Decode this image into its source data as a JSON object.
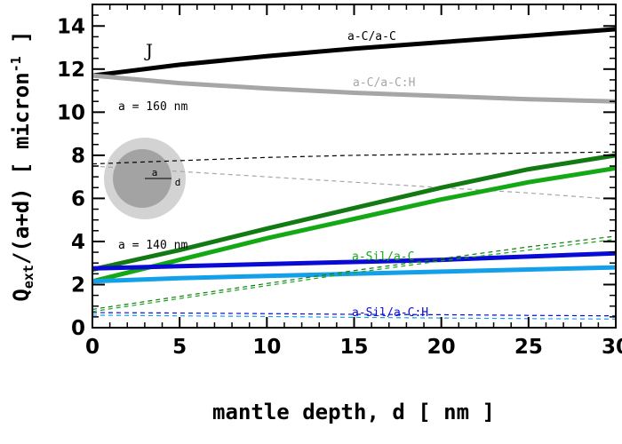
{
  "chart_data": {
    "type": "line",
    "panel_label": "J",
    "xlabel": "mantle depth, d [ nm ]",
    "ylabel_main": "Q",
    "ylabel_sub": "ext",
    "ylabel_rest": "/(a+d) [ micron",
    "ylabel_sup": "-1",
    "ylabel_close": " ]",
    "xlim": [
      0,
      30
    ],
    "ylim": [
      0,
      15
    ],
    "xticks": [
      "0",
      "5",
      "10",
      "15",
      "20",
      "25",
      "30"
    ],
    "yticks": [
      "0",
      "2",
      "4",
      "6",
      "8",
      "10",
      "12",
      "14"
    ],
    "annotations": {
      "a160": "a = 160 nm",
      "a140": "a = 140 nm",
      "aC_aC": "a-C/a-C",
      "aC_aCH": "a-C/a-C:H",
      "aSil_aC": "a-Sil/a-C",
      "aSil_aCH": "a-Sil/a-C:H",
      "inset_a": "a",
      "inset_d": "d"
    },
    "colors": {
      "black": "#000000",
      "gray": "#a6a6a6",
      "darkgreen": "#137a13",
      "green": "#14a814",
      "blue": "#0a0ad6",
      "lightblue": "#14a0e8"
    },
    "series": [
      {
        "color": "black",
        "style": "solid",
        "x": [
          0,
          5,
          10,
          15,
          20,
          25,
          30
        ],
        "y": [
          11.7,
          12.2,
          12.6,
          12.95,
          13.25,
          13.55,
          13.85
        ]
      },
      {
        "color": "gray",
        "style": "solid",
        "x": [
          0,
          5,
          10,
          15,
          20,
          25,
          30
        ],
        "y": [
          11.7,
          11.35,
          11.1,
          10.9,
          10.75,
          10.6,
          10.5
        ]
      },
      {
        "color": "black",
        "style": "dashed",
        "x": [
          0,
          5,
          10,
          15,
          20,
          25,
          30
        ],
        "y": [
          7.6,
          7.75,
          7.9,
          8.0,
          8.05,
          8.1,
          8.15
        ]
      },
      {
        "color": "gray",
        "style": "dashed",
        "x": [
          0,
          5,
          10,
          15,
          20,
          25,
          30
        ],
        "y": [
          7.5,
          7.25,
          7.0,
          6.75,
          6.5,
          6.25,
          5.95
        ]
      },
      {
        "color": "darkgreen",
        "style": "solid",
        "x": [
          0,
          5,
          10,
          15,
          20,
          25,
          30
        ],
        "y": [
          2.7,
          3.6,
          4.6,
          5.55,
          6.5,
          7.35,
          8.0
        ]
      },
      {
        "color": "green",
        "style": "solid",
        "x": [
          0,
          5,
          10,
          15,
          20,
          25,
          30
        ],
        "y": [
          2.15,
          3.15,
          4.15,
          5.05,
          5.95,
          6.75,
          7.4
        ]
      },
      {
        "color": "blue",
        "style": "solid",
        "x": [
          0,
          5,
          10,
          15,
          20,
          25,
          30
        ],
        "y": [
          2.75,
          2.85,
          2.95,
          3.05,
          3.15,
          3.3,
          3.45
        ]
      },
      {
        "color": "lightblue",
        "style": "solid",
        "x": [
          0,
          5,
          10,
          15,
          20,
          25,
          30
        ],
        "y": [
          2.15,
          2.3,
          2.4,
          2.5,
          2.6,
          2.7,
          2.8
        ]
      },
      {
        "color": "darkgreen",
        "style": "dashed",
        "x": [
          0,
          5,
          10,
          15,
          20,
          25,
          30
        ],
        "y": [
          0.85,
          1.45,
          2.05,
          2.65,
          3.2,
          3.75,
          4.25
        ]
      },
      {
        "color": "green",
        "style": "dashed",
        "x": [
          0,
          5,
          10,
          15,
          20,
          25,
          30
        ],
        "y": [
          0.75,
          1.35,
          1.95,
          2.55,
          3.1,
          3.6,
          4.1
        ]
      },
      {
        "color": "blue",
        "style": "dashed",
        "x": [
          0,
          5,
          10,
          15,
          20,
          25,
          30
        ],
        "y": [
          0.7,
          0.68,
          0.65,
          0.62,
          0.6,
          0.57,
          0.55
        ]
      },
      {
        "color": "lightblue",
        "style": "dashed",
        "x": [
          0,
          5,
          10,
          15,
          20,
          25,
          30
        ],
        "y": [
          0.58,
          0.55,
          0.52,
          0.48,
          0.45,
          0.42,
          0.4
        ]
      }
    ]
  }
}
